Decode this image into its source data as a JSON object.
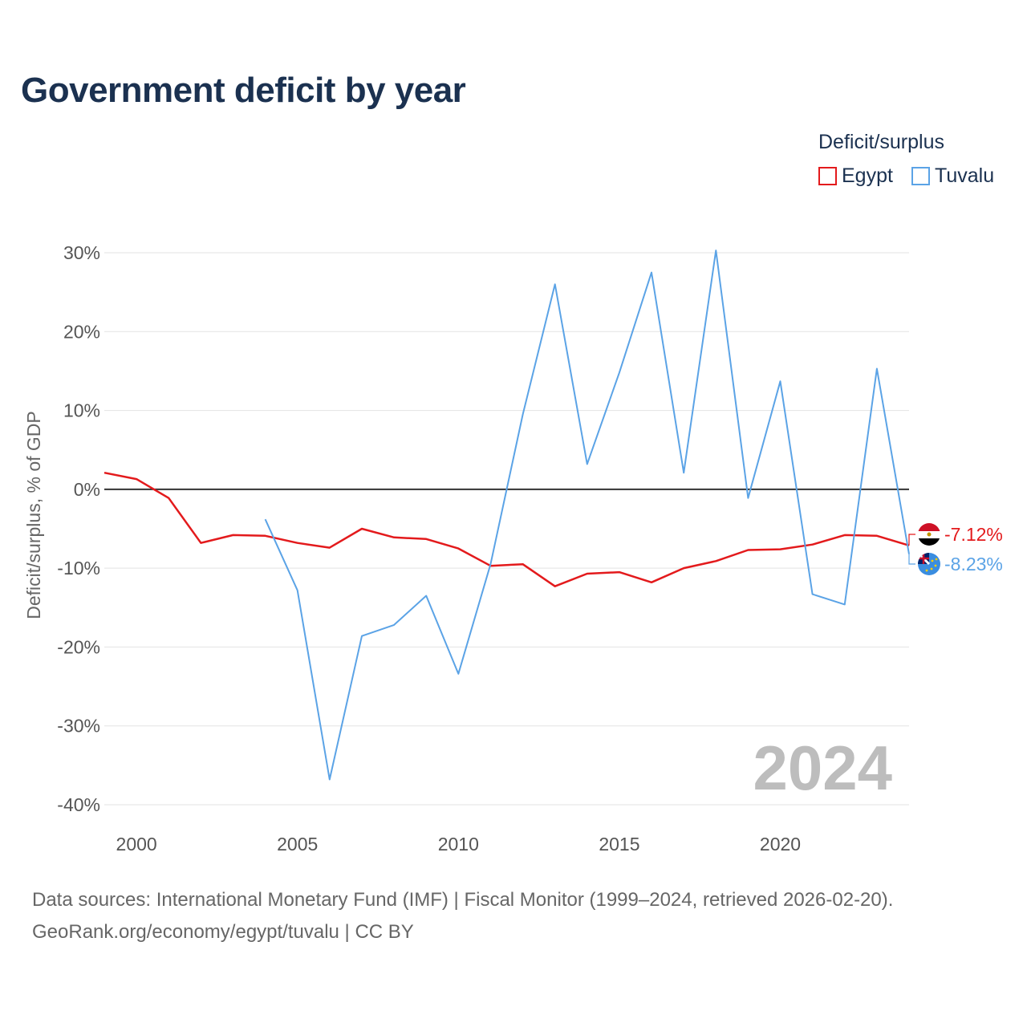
{
  "title": "Government deficit by year",
  "legend": {
    "title": "Deficit/surplus",
    "items": [
      {
        "label": "Egypt",
        "color": "#e31a1c"
      },
      {
        "label": "Tuvalu",
        "color": "#5ba3e6"
      }
    ]
  },
  "footer": {
    "line1": "Data sources: International Monetary Fund (IMF) | Fiscal Monitor (1999–2024, retrieved 2026-02-20).",
    "line2": "GeoRank.org/economy/egypt/tuvalu | CC BY"
  },
  "chart_data": {
    "type": "line",
    "title": "Government deficit by year",
    "xlabel": "",
    "ylabel": "Deficit/surplus, % of GDP",
    "xlim": [
      1999,
      2024
    ],
    "ylim": [
      -40,
      30
    ],
    "x_ticks": [
      2000,
      2005,
      2010,
      2015,
      2020
    ],
    "y_ticks": [
      30,
      20,
      10,
      0,
      -10,
      -20,
      -30,
      -40
    ],
    "y_tick_labels": [
      "30%",
      "20%",
      "10%",
      "0%",
      "-10%",
      "-20%",
      "-30%",
      "-40%"
    ],
    "year_label": "2024",
    "series": [
      {
        "name": "Egypt",
        "color": "#e31a1c",
        "end_label": "-7.12%",
        "x": [
          1999,
          2000,
          2001,
          2002,
          2003,
          2004,
          2005,
          2006,
          2007,
          2008,
          2009,
          2010,
          2011,
          2012,
          2013,
          2014,
          2015,
          2016,
          2017,
          2018,
          2019,
          2020,
          2021,
          2022,
          2023,
          2024
        ],
        "values": [
          2.1,
          1.3,
          -1.1,
          -6.8,
          -5.8,
          -5.9,
          -6.8,
          -7.4,
          -5.0,
          -6.1,
          -6.3,
          -7.5,
          -9.7,
          -9.5,
          -12.3,
          -10.7,
          -10.5,
          -11.8,
          -10.0,
          -9.1,
          -7.7,
          -7.6,
          -7.0,
          -5.8,
          -5.9,
          -7.12
        ]
      },
      {
        "name": "Tuvalu",
        "color": "#5ba3e6",
        "end_label": "-8.23%",
        "x": [
          2004,
          2005,
          2006,
          2007,
          2008,
          2009,
          2010,
          2011,
          2012,
          2013,
          2014,
          2015,
          2016,
          2017,
          2018,
          2019,
          2020,
          2021,
          2022,
          2023,
          2024
        ],
        "values": [
          -3.8,
          -12.8,
          -36.8,
          -18.6,
          -17.2,
          -13.5,
          -23.4,
          -9.5,
          9.5,
          26.0,
          3.2,
          14.8,
          27.5,
          2.1,
          30.3,
          -1.1,
          13.7,
          -13.3,
          -14.6,
          15.3,
          -8.23
        ]
      }
    ]
  }
}
